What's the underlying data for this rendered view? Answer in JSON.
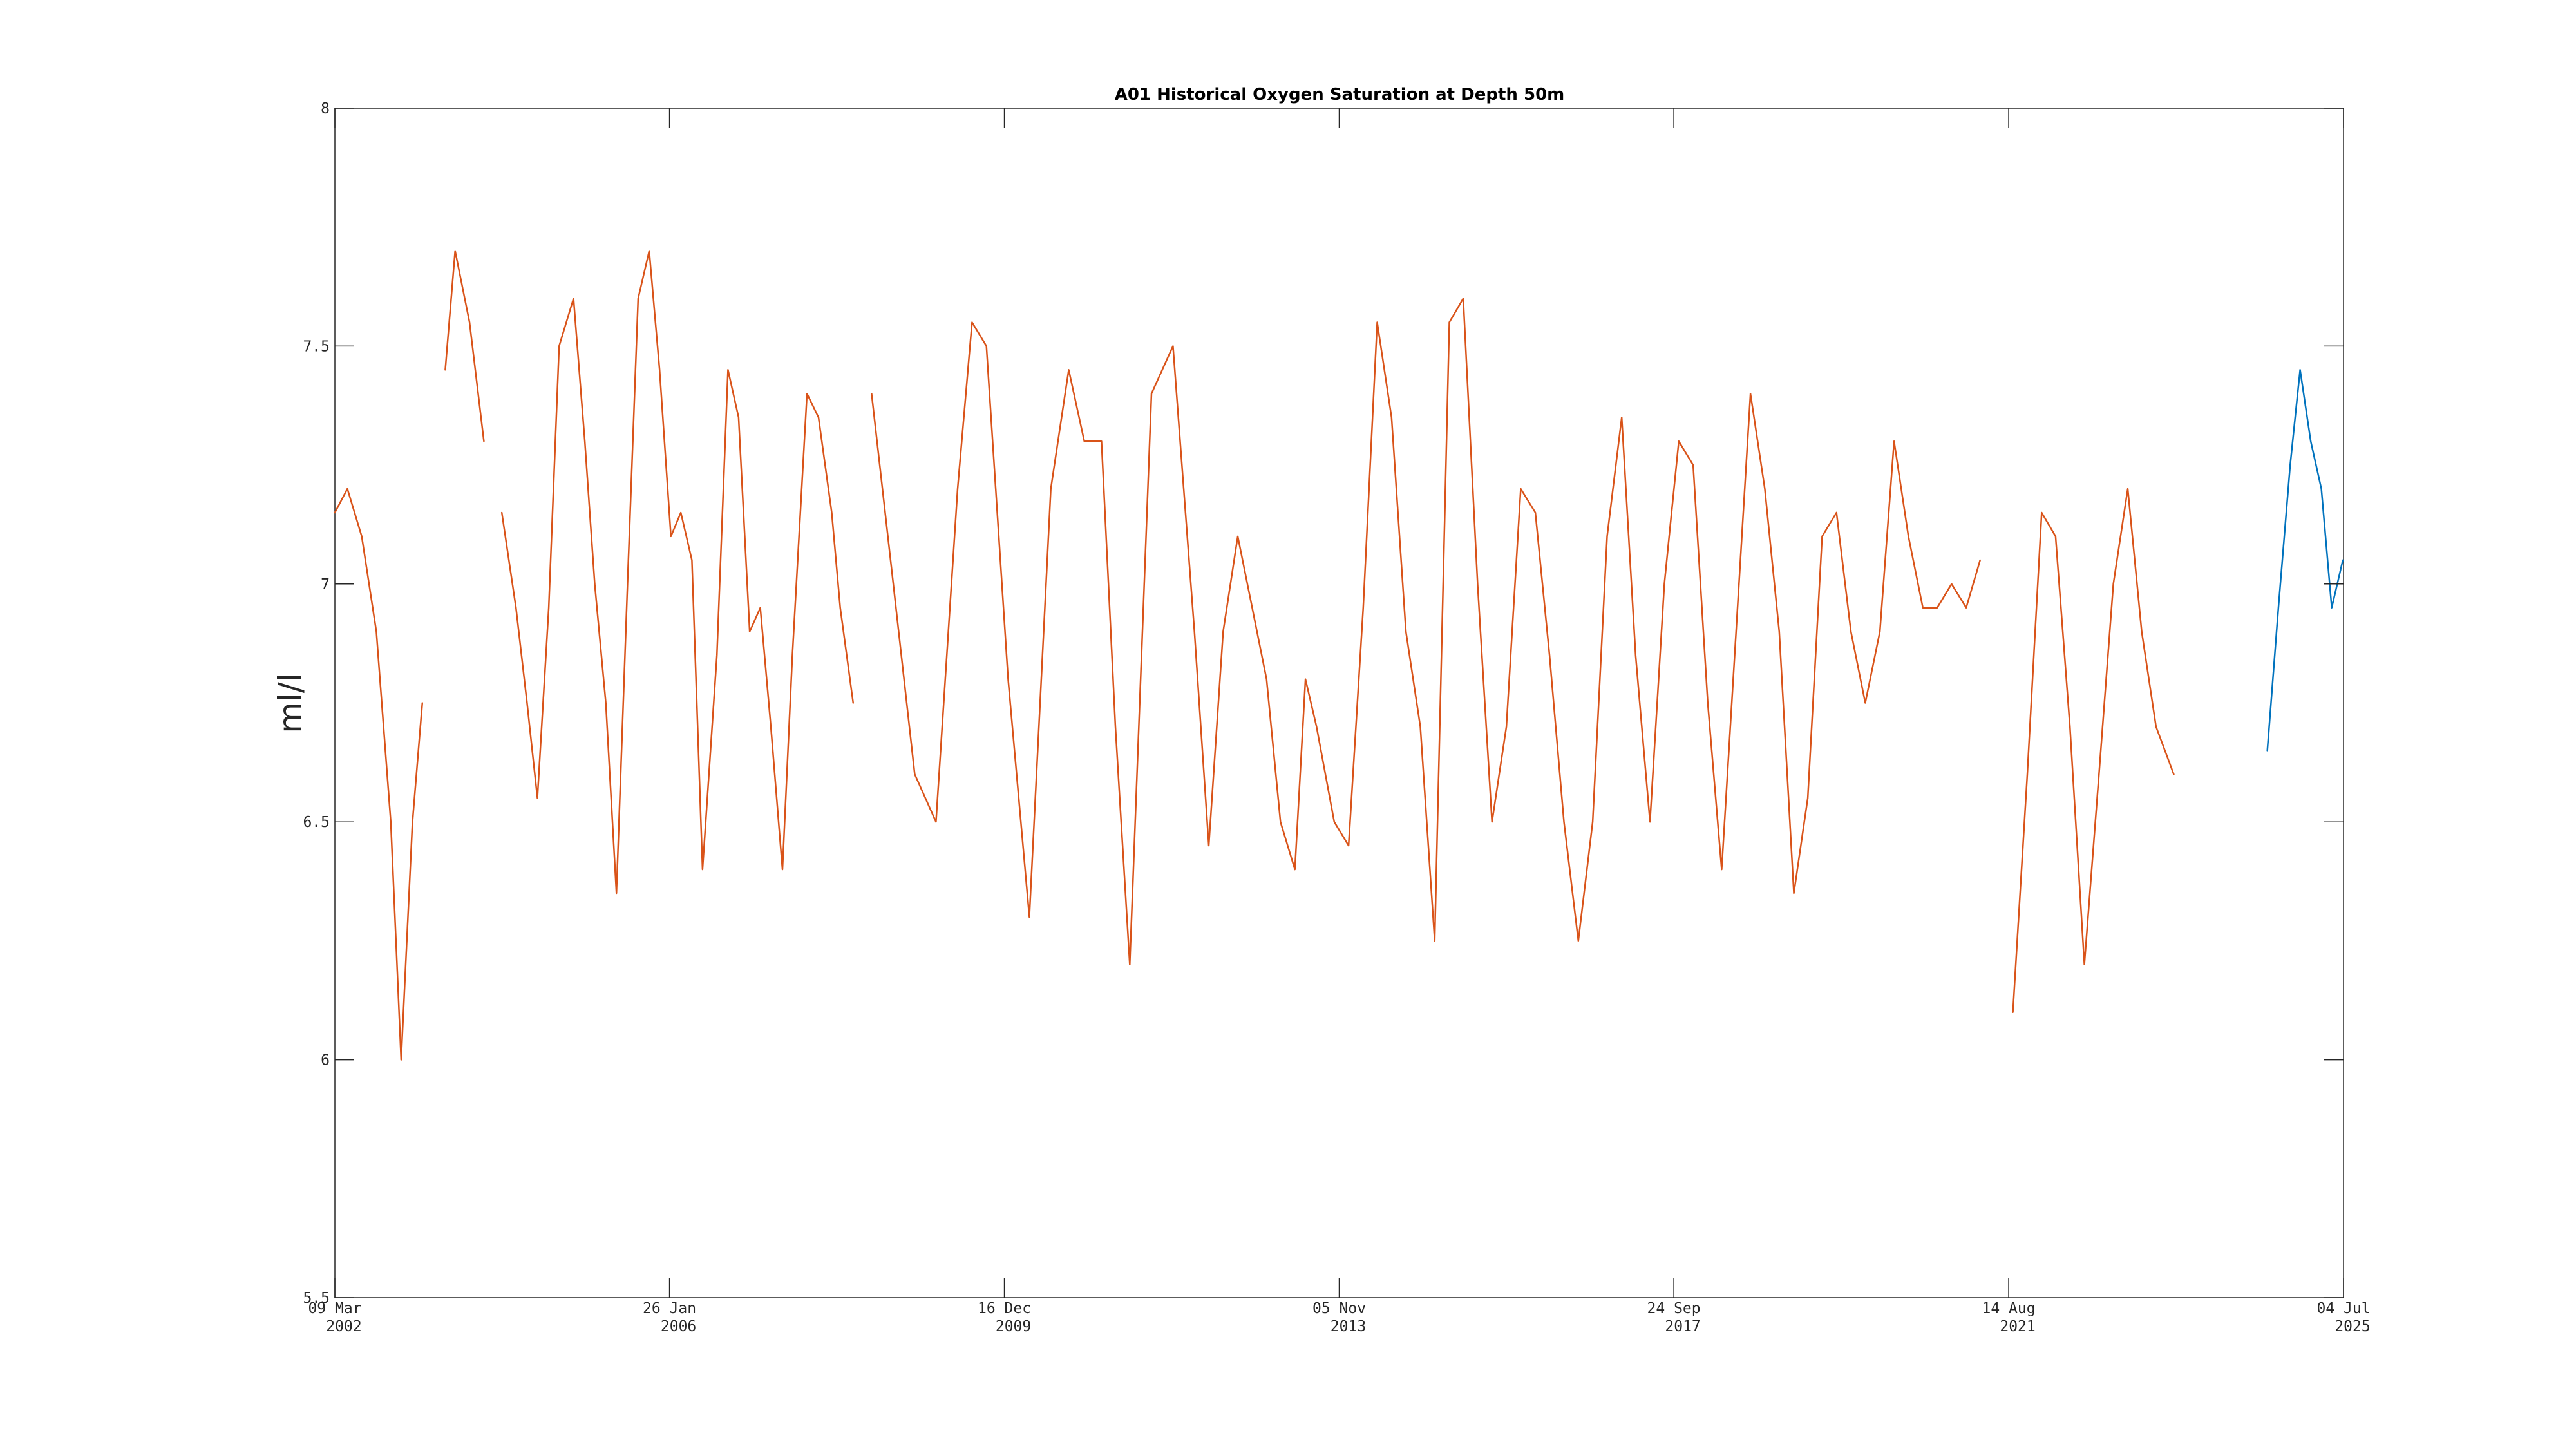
{
  "chart_data": {
    "type": "line",
    "title": "A01 Historical Oxygen Saturation at Depth 50m",
    "xlabel": "",
    "ylabel": "ml/l",
    "ylim": [
      5.5,
      8.0
    ],
    "xlim": [
      "2002-03-09",
      "2025-07-04"
    ],
    "grid": false,
    "legend": "none",
    "y_ticks": [
      {
        "value": 5.5,
        "label": "5.5"
      },
      {
        "value": 6.0,
        "label": "6"
      },
      {
        "value": 6.5,
        "label": "6.5"
      },
      {
        "value": 7.0,
        "label": "7"
      },
      {
        "value": 7.5,
        "label": "7.5"
      },
      {
        "value": 8.0,
        "label": "8"
      }
    ],
    "x_ticks": [
      {
        "date": "2002-03-09",
        "line1": "09 Mar",
        "line2": "2002"
      },
      {
        "date": "2006-01-26",
        "line1": "26 Jan",
        "line2": "2006"
      },
      {
        "date": "2009-12-16",
        "line1": "16 Dec",
        "line2": "2009"
      },
      {
        "date": "2013-11-05",
        "line1": "05 Nov",
        "line2": "2013"
      },
      {
        "date": "2017-09-24",
        "line1": "24 Sep",
        "line2": "2017"
      },
      {
        "date": "2021-08-14",
        "line1": "14 Aug",
        "line2": "2021"
      },
      {
        "date": "2025-07-04",
        "line1": "04 Jul",
        "line2": "2025"
      }
    ],
    "series": [
      {
        "color": "#D95319",
        "segments": [
          {
            "x": [
              "2002-03-09",
              "2002-05-01",
              "2002-07-01",
              "2002-09-01",
              "2002-11-01",
              "2002-12-15",
              "2003-02-01",
              "2003-03-15"
            ],
            "y": [
              7.15,
              7.2,
              7.1,
              6.9,
              6.5,
              6.0,
              6.5,
              6.75
            ]
          },
          {
            "x": [
              "2003-06-20",
              "2003-08-01",
              "2003-10-01",
              "2003-12-01"
            ],
            "y": [
              7.45,
              7.7,
              7.55,
              7.3
            ]
          },
          {
            "x": [
              "2004-02-15",
              "2004-04-15",
              "2004-06-01",
              "2004-07-15",
              "2004-09-01",
              "2004-10-15",
              "2004-12-15",
              "2005-02-01",
              "2005-03-15",
              "2005-05-01",
              "2005-06-15",
              "2005-08-01",
              "2005-09-15",
              "2005-11-01",
              "2005-12-15",
              "2006-02-01",
              "2006-03-15",
              "2006-05-01",
              "2006-06-15",
              "2006-08-15",
              "2006-10-01",
              "2006-11-15",
              "2007-01-01",
              "2007-02-15",
              "2007-04-01",
              "2007-05-20",
              "2007-07-01",
              "2007-09-01",
              "2007-10-20",
              "2007-12-15",
              "2008-01-20",
              "2008-03-15"
            ],
            "y": [
              7.15,
              6.95,
              6.75,
              6.55,
              6.95,
              7.5,
              7.6,
              7.3,
              7.0,
              6.75,
              6.35,
              7.0,
              7.6,
              7.7,
              7.45,
              7.1,
              7.15,
              7.05,
              6.4,
              6.85,
              7.45,
              7.35,
              6.9,
              6.95,
              6.7,
              6.4,
              6.85,
              7.4,
              7.35,
              7.15,
              6.95,
              6.75
            ]
          },
          {
            "x": [
              "2008-06-01",
              "2008-09-01",
              "2008-12-01",
              "2009-03-01",
              "2009-06-01",
              "2009-08-01",
              "2009-10-01",
              "2010-01-01",
              "2010-04-01",
              "2010-07-01",
              "2010-09-15",
              "2010-11-20",
              "2011-02-01",
              "2011-04-01",
              "2011-06-01",
              "2011-09-01",
              "2011-12-01",
              "2012-03-01",
              "2012-05-01",
              "2012-07-01",
              "2012-09-01",
              "2012-11-01",
              "2013-01-01",
              "2013-03-01",
              "2013-05-01",
              "2013-06-15",
              "2013-08-01",
              "2013-10-15",
              "2013-12-15",
              "2014-02-15",
              "2014-04-15",
              "2014-06-15",
              "2014-08-15",
              "2014-10-15",
              "2014-12-15",
              "2015-02-15",
              "2015-04-15",
              "2015-06-15",
              "2015-08-15",
              "2015-10-15",
              "2015-12-15",
              "2016-02-15",
              "2016-04-15",
              "2016-06-15",
              "2016-08-15",
              "2016-10-15",
              "2016-12-15",
              "2017-02-15",
              "2017-04-15",
              "2017-06-15",
              "2017-08-15",
              "2017-10-15",
              "2017-12-15",
              "2018-02-15",
              "2018-04-15",
              "2018-06-15",
              "2018-08-15",
              "2018-10-15",
              "2018-12-15",
              "2019-02-15",
              "2019-04-15",
              "2019-06-15",
              "2019-08-15",
              "2019-10-15",
              "2019-12-15",
              "2020-02-15",
              "2020-04-15",
              "2020-06-15",
              "2020-08-15",
              "2020-10-15",
              "2020-12-15",
              "2021-02-15",
              "2021-04-15"
            ],
            "y": [
              7.4,
              7.0,
              6.6,
              6.5,
              7.2,
              7.55,
              7.5,
              6.8,
              6.3,
              7.2,
              7.45,
              7.3,
              7.3,
              6.7,
              6.2,
              7.4,
              7.5,
              6.9,
              6.45,
              6.9,
              7.1,
              6.95,
              6.8,
              6.5,
              6.4,
              6.8,
              6.7,
              6.5,
              6.45,
              6.95,
              7.55,
              7.35,
              6.9,
              6.7,
              6.25,
              7.55,
              7.6,
              7.0,
              6.5,
              6.7,
              7.2,
              7.15,
              6.85,
              6.5,
              6.25,
              6.5,
              7.1,
              7.35,
              6.85,
              6.5,
              7.0,
              7.3,
              7.25,
              6.75,
              6.4,
              6.9,
              7.4,
              7.2,
              6.9,
              6.35,
              6.55,
              7.1,
              7.15,
              6.9,
              6.75,
              6.9,
              7.3,
              7.1,
              6.95,
              6.95,
              7.0,
              6.95,
              7.05
            ]
          },
          {
            "x": [
              "2021-09-01",
              "2021-11-01",
              "2022-01-01",
              "2022-03-01",
              "2022-05-01",
              "2022-07-01",
              "2022-09-01",
              "2022-11-01",
              "2023-01-01",
              "2023-03-01",
              "2023-05-01",
              "2023-07-15"
            ],
            "y": [
              6.1,
              6.6,
              7.15,
              7.1,
              6.7,
              6.2,
              6.6,
              7.0,
              7.2,
              6.9,
              6.7,
              6.6
            ]
          }
        ]
      },
      {
        "color": "#0072BD",
        "segments": [
          {
            "x": [
              "2024-08-15",
              "2024-10-01",
              "2024-11-20",
              "2025-01-01",
              "2025-02-15",
              "2025-04-01",
              "2025-05-15",
              "2025-07-01"
            ],
            "y": [
              6.65,
              6.95,
              7.25,
              7.45,
              7.3,
              7.2,
              6.95,
              7.05
            ]
          }
        ]
      }
    ]
  }
}
